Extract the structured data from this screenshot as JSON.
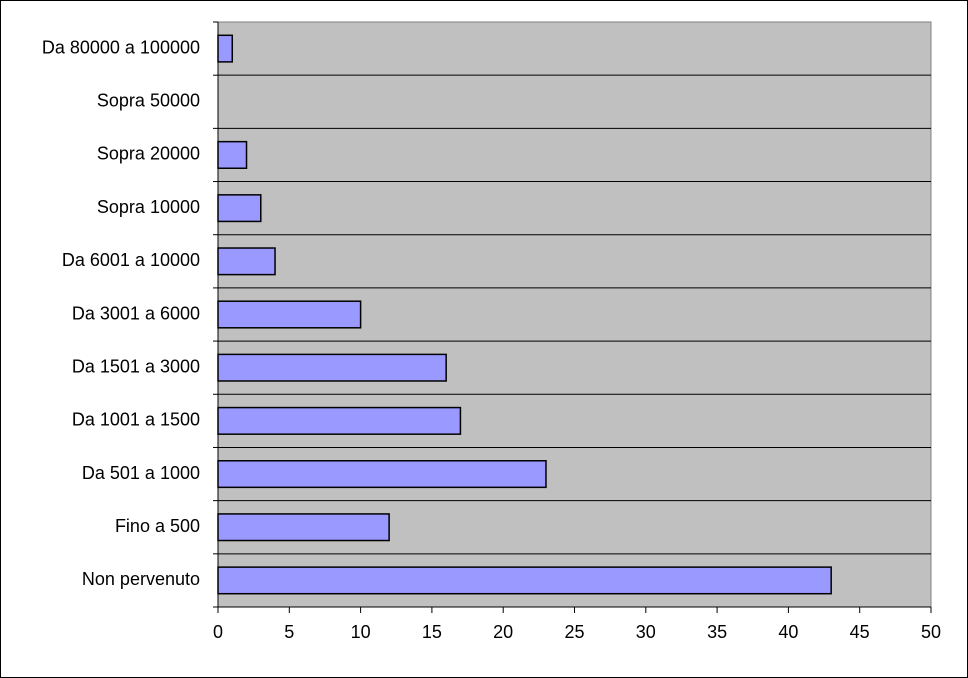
{
  "chart_data": {
    "type": "bar",
    "orientation": "horizontal",
    "categories": [
      "Da 80000 a 100000",
      "Sopra 50000",
      "Sopra 20000",
      "Sopra 10000",
      "Da 6001 a 10000",
      "Da 3001 a 6000",
      "Da 1501 a 3000",
      "Da 1001 a 1500",
      "Da 501 a 1000",
      "Fino a 500",
      "Non pervenuto"
    ],
    "values": [
      1,
      0,
      2,
      3,
      4,
      10,
      16,
      17,
      23,
      12,
      43
    ],
    "color": "#9999ff",
    "plot_background": "#c0c0c0",
    "xlim": [
      0,
      50
    ],
    "xticks": [
      0,
      5,
      10,
      15,
      20,
      25,
      30,
      35,
      40,
      45,
      50
    ]
  }
}
